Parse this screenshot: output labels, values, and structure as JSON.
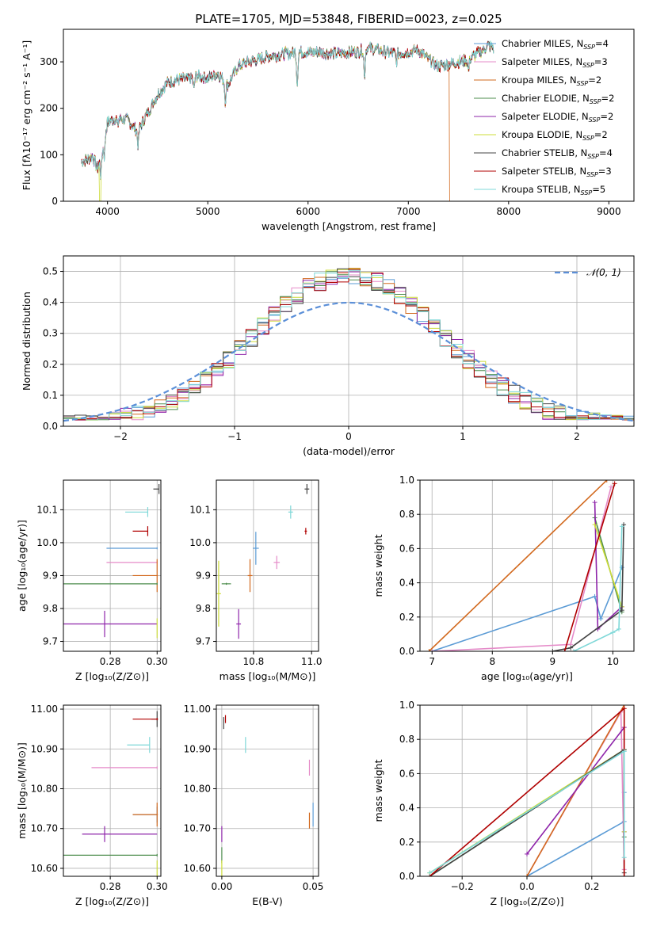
{
  "figure": {
    "title": "PLATE=1705, MJD=53848, FIBERID=0023, z=0.025"
  },
  "colors": {
    "Chabrier MILES": "#5B9BD5",
    "Salpeter MILES": "#E58BC9",
    "Kroupa MILES": "#D2691E",
    "Chabrier ELODIE": "#4C8C4C",
    "Salpeter ELODIE": "#8E24AA",
    "Kroupa ELODIE": "#CDDC39",
    "Chabrier STELIB": "#444444",
    "Salpeter STELIB": "#B00000",
    "Kroupa STELIB": "#7FD8D8",
    "normal": "#5B8FD8"
  },
  "chart_data": [
    {
      "id": "spectrum",
      "type": "line",
      "title": "PLATE=1705, MJD=53848, FIBERID=0023, z=0.025",
      "xlabel": "wavelength [Angstrom, rest frame]",
      "ylabel": "Flux [fλ10⁻¹⁷ erg cm⁻² s⁻¹ A⁻¹]",
      "xlim": [
        3560,
        9250
      ],
      "ylim": [
        0,
        370
      ],
      "xticks": [
        4000,
        5000,
        6000,
        7000,
        8000,
        9000
      ],
      "yticks": [
        0,
        100,
        200,
        300
      ],
      "grid": false,
      "legend_position": "top-right",
      "legend": [
        "Chabrier MILES, N_SSP=4",
        "Salpeter MILES, N_SSP=3",
        "Kroupa MILES, N_SSP=2",
        "Chabrier ELODIE, N_SSP=2",
        "Salpeter ELODIE, N_SSP=2",
        "Kroupa ELODIE, N_SSP=2",
        "Chabrier STELIB, N_SSP=4",
        "Salpeter STELIB, N_SSP=3",
        "Kroupa STELIB, N_SSP=5"
      ],
      "continuum": {
        "wavelength": [
          3740,
          3800,
          3850,
          3900,
          3950,
          4000,
          4100,
          4200,
          4300,
          4400,
          4500,
          4600,
          4700,
          4800,
          4900,
          5000,
          5100,
          5200,
          5300,
          5400,
          5500,
          5600,
          5700,
          5800,
          5900,
          6000,
          6100,
          6200,
          6300,
          6400,
          6500,
          6600,
          6700,
          6800,
          6900,
          7000,
          7100,
          7200,
          7300,
          7400,
          7500,
          7600,
          7700,
          7800,
          7850
        ],
        "flux": [
          85,
          90,
          98,
          70,
          110,
          170,
          180,
          175,
          150,
          190,
          230,
          255,
          262,
          262,
          270,
          265,
          275,
          250,
          290,
          300,
          305,
          312,
          315,
          318,
          322,
          320,
          322,
          318,
          318,
          320,
          322,
          330,
          325,
          320,
          318,
          322,
          325,
          305,
          290,
          295,
          300,
          305,
          320,
          335,
          330
        ]
      },
      "dropouts": [
        {
          "model": "Kroupa ELODIE",
          "start": 3920,
          "end": 9250
        },
        {
          "model": "Kroupa ELODIE",
          "start": 6780,
          "end": 9250
        },
        {
          "model": "Kroupa MILES",
          "start": 7410,
          "end": 9250
        }
      ]
    },
    {
      "id": "residuals",
      "type": "histogram",
      "xlabel": "(data-model)/error",
      "ylabel": "Normed distribution",
      "xlim": [
        -2.5,
        2.5
      ],
      "ylim": [
        0,
        0.55
      ],
      "xticks": [
        -2,
        -1,
        0,
        1,
        2
      ],
      "yticks": [
        0.0,
        0.1,
        0.2,
        0.3,
        0.4,
        0.5
      ],
      "grid": true,
      "bin_width": 0.1,
      "legend": "𝒩(0, 1)",
      "legend_position": "top-right"
    },
    {
      "id": "z-age",
      "type": "errorbar",
      "xlabel": "Z [log₁₀(Z/Z⊙)]",
      "ylabel": "age  [log₁₀(age/yr)]",
      "xlim": [
        0.25,
        0.302
      ],
      "ylim": [
        9.67,
        10.19
      ],
      "xticks": [
        0.275,
        0.3
      ],
      "yticks": [
        9.7,
        9.8,
        9.9,
        10.0,
        10.1
      ],
      "grid": true,
      "points": [
        {
          "model": "Chabrier MILES",
          "x": 0.3,
          "y": 9.983,
          "xerr": [
            0.027,
            0
          ],
          "yerr": 0.003
        },
        {
          "model": "Salpeter MILES",
          "x": 0.3,
          "y": 9.94,
          "xerr": [
            0.027,
            0
          ],
          "yerr": 0.003
        },
        {
          "model": "Kroupa MILES",
          "x": 0.3,
          "y": 9.9,
          "xerr": [
            0.013,
            0.0004
          ],
          "yerr": 0.05
        },
        {
          "model": "Chabrier ELODIE",
          "x": 0.3,
          "y": 9.875,
          "xerr": [
            0.05,
            0
          ],
          "yerr": 0.003
        },
        {
          "model": "Salpeter ELODIE",
          "x": 0.272,
          "y": 9.753,
          "xerr": [
            0.025,
            0.028
          ],
          "yerr": 0.04
        },
        {
          "model": "Kroupa ELODIE",
          "x": 0.3,
          "y": 9.74,
          "xerr": [
            0,
            0
          ],
          "yerr": 0.03
        },
        {
          "model": "Chabrier STELIB",
          "x": 0.301,
          "y": 10.163,
          "xerr": [
            0.003,
            0
          ],
          "yerr": 0.015
        },
        {
          "model": "Salpeter STELIB",
          "x": 0.295,
          "y": 10.035,
          "xerr": [
            0.008,
            0
          ],
          "yerr": 0.015
        },
        {
          "model": "Kroupa STELIB",
          "x": 0.295,
          "y": 10.093,
          "xerr": [
            0.012,
            0
          ],
          "yerr": 0.015
        }
      ]
    },
    {
      "id": "mass-age",
      "type": "errorbar",
      "xlabel": "mass [log₁₀(M/M⊙)]",
      "ylabel": "",
      "xlim": [
        10.59,
        11.03
      ],
      "ylim": [
        9.67,
        10.19
      ],
      "xticks": [
        10.75,
        11.0
      ],
      "yticks": [
        9.7,
        9.8,
        9.9,
        10.0,
        10.1
      ],
      "grid": true,
      "points": [
        {
          "model": "Chabrier MILES",
          "x": 10.76,
          "y": 9.983,
          "xerr": 0.013,
          "yerr": 0.05
        },
        {
          "model": "Salpeter MILES",
          "x": 10.85,
          "y": 9.94,
          "xerr": 0.013,
          "yerr": 0.02
        },
        {
          "model": "Kroupa MILES",
          "x": 10.735,
          "y": 9.9,
          "xerr": 0.01,
          "yerr": 0.05
        },
        {
          "model": "Chabrier ELODIE",
          "x": 10.633,
          "y": 9.875,
          "xerr": 0.02,
          "yerr": 0.003
        },
        {
          "model": "Salpeter ELODIE",
          "x": 10.686,
          "y": 9.753,
          "xerr": 0.01,
          "yerr": 0.045
        },
        {
          "model": "Kroupa ELODIE",
          "x": 10.6,
          "y": 9.845,
          "xerr": 0.01,
          "yerr": 0.1
        },
        {
          "model": "Chabrier STELIB",
          "x": 10.98,
          "y": 10.163,
          "xerr": 0.01,
          "yerr": 0.015
        },
        {
          "model": "Salpeter STELIB",
          "x": 10.975,
          "y": 10.035,
          "xerr": 0.005,
          "yerr": 0.01
        },
        {
          "model": "Kroupa STELIB",
          "x": 10.91,
          "y": 10.093,
          "xerr": 0.01,
          "yerr": 0.02
        }
      ]
    },
    {
      "id": "age-weight",
      "type": "line",
      "xlabel": "age  [log₁₀(age/yr)]",
      "ylabel": "mass weight",
      "xlim": [
        6.8,
        10.35
      ],
      "ylim": [
        0,
        1.0
      ],
      "xticks": [
        7,
        8,
        9,
        10
      ],
      "yticks": [
        0.0,
        0.2,
        0.4,
        0.6,
        0.8,
        1.0
      ],
      "grid": true,
      "series": [
        {
          "model": "Chabrier MILES",
          "x": [
            7.0,
            9.7,
            9.8,
            10.15
          ],
          "y": [
            0.0,
            0.32,
            0.19,
            0.49
          ]
        },
        {
          "model": "Salpeter MILES",
          "x": [
            7.0,
            9.3,
            9.97
          ],
          "y": [
            0.0,
            0.04,
            0.96
          ]
        },
        {
          "model": "Kroupa MILES",
          "x": [
            6.95,
            9.9
          ],
          "y": [
            0.0,
            1.0
          ]
        },
        {
          "model": "Chabrier ELODIE",
          "x": [
            9.7,
            10.15
          ],
          "y": [
            0.78,
            0.23
          ]
        },
        {
          "model": "Salpeter ELODIE",
          "x": [
            9.7,
            9.75,
            10.15
          ],
          "y": [
            0.87,
            0.13,
            0.26
          ]
        },
        {
          "model": "Kroupa ELODIE",
          "x": [
            9.7,
            10.15
          ],
          "y": [
            0.74,
            0.26
          ]
        },
        {
          "model": "Chabrier STELIB",
          "x": [
            9.0,
            9.3,
            10.15,
            10.18
          ],
          "y": [
            0.0,
            0.02,
            0.24,
            0.74
          ]
        },
        {
          "model": "Salpeter STELIB",
          "x": [
            9.2,
            10.03
          ],
          "y": [
            0.0,
            0.98
          ]
        },
        {
          "model": "Kroupa STELIB",
          "x": [
            9.35,
            10.0,
            10.1,
            10.15
          ],
          "y": [
            0.0,
            0.11,
            0.13,
            0.73
          ]
        }
      ]
    },
    {
      "id": "z-mass",
      "type": "errorbar",
      "xlabel": "Z [log₁₀(Z/Z⊙)]",
      "ylabel": "mass [log₁₀(M/M⊙)]",
      "xlim": [
        0.25,
        0.302
      ],
      "ylim": [
        10.58,
        11.01
      ],
      "xticks": [
        0.275,
        0.3
      ],
      "yticks": [
        10.6,
        10.7,
        10.8,
        10.9,
        11.0
      ],
      "grid": true,
      "points": [
        {
          "model": "Chabrier MILES",
          "x": 0.3,
          "y": 10.735,
          "xerr": [
            0.013,
            0
          ],
          "yerr": 0.02
        },
        {
          "model": "Salpeter MILES",
          "x": 0.3,
          "y": 10.853,
          "xerr": [
            0.035,
            0
          ],
          "yerr": 0.003
        },
        {
          "model": "Kroupa MILES",
          "x": 0.3,
          "y": 10.735,
          "xerr": [
            0.013,
            0.0004
          ],
          "yerr": 0.03
        },
        {
          "model": "Chabrier ELODIE",
          "x": 0.3,
          "y": 10.633,
          "xerr": [
            0.05,
            0
          ],
          "yerr": 0.003
        },
        {
          "model": "Salpeter ELODIE",
          "x": 0.272,
          "y": 10.686,
          "xerr": [
            0.012,
            0.028
          ],
          "yerr": 0.02
        },
        {
          "model": "Kroupa ELODIE",
          "x": 0.3,
          "y": 10.6,
          "xerr": [
            0,
            0
          ],
          "yerr": 0.02
        },
        {
          "model": "Chabrier STELIB",
          "x": 0.3,
          "y": 10.975,
          "xerr": [
            0.003,
            0.0005
          ],
          "yerr": 0.02
        },
        {
          "model": "Salpeter STELIB",
          "x": 0.3,
          "y": 10.975,
          "xerr": [
            0.013,
            0
          ],
          "yerr": 0.003
        },
        {
          "model": "Kroupa STELIB",
          "x": 0.296,
          "y": 10.91,
          "xerr": [
            0.012,
            0
          ],
          "yerr": 0.02
        }
      ]
    },
    {
      "id": "ebv-mass",
      "type": "errorbar",
      "xlabel": "E(B-V)",
      "ylabel": "",
      "xlim": [
        -0.003,
        0.053
      ],
      "ylim": [
        10.58,
        11.01
      ],
      "xticks": [
        0.0,
        0.05
      ],
      "yticks": [
        10.6,
        10.7,
        10.8,
        10.9,
        11.0
      ],
      "grid": true,
      "points": [
        {
          "model": "Chabrier MILES",
          "x": 0.05,
          "y": 10.735,
          "yerr": 0.03
        },
        {
          "model": "Salpeter MILES",
          "x": 0.048,
          "y": 10.853,
          "yerr": 0.02
        },
        {
          "model": "Kroupa MILES",
          "x": 0.048,
          "y": 10.72,
          "yerr": 0.02
        },
        {
          "model": "Chabrier ELODIE",
          "x": 0.0,
          "y": 10.633,
          "yerr": 0.02
        },
        {
          "model": "Salpeter ELODIE",
          "x": 0.0,
          "y": 10.686,
          "yerr": 0.02
        },
        {
          "model": "Kroupa ELODIE",
          "x": 0.0,
          "y": 10.6,
          "yerr": 0.02
        },
        {
          "model": "Chabrier STELIB",
          "x": 0.001,
          "y": 10.965,
          "yerr": 0.015
        },
        {
          "model": "Salpeter STELIB",
          "x": 0.002,
          "y": 10.975,
          "yerr": 0.01
        },
        {
          "model": "Kroupa STELIB",
          "x": 0.013,
          "y": 10.91,
          "yerr": 0.02
        }
      ]
    },
    {
      "id": "z-weight",
      "type": "line",
      "xlabel": "Z [log₁₀(Z/Z⊙)]",
      "ylabel": "mass weight",
      "xlim": [
        -0.33,
        0.33
      ],
      "ylim": [
        0,
        1.0
      ],
      "xticks": [
        -0.2,
        0.0,
        0.2
      ],
      "yticks": [
        0.0,
        0.2,
        0.4,
        0.6,
        0.8,
        1.0
      ],
      "grid": true,
      "series": [
        {
          "model": "Chabrier MILES",
          "x": [
            0.0,
            0.3,
            0.3
          ],
          "y": [
            0.0,
            0.32,
            0.49
          ]
        },
        {
          "model": "Salpeter MILES",
          "x": [
            0.0,
            0.29,
            0.3
          ],
          "y": [
            0.0,
            0.96,
            0.04
          ]
        },
        {
          "model": "Kroupa MILES",
          "x": [
            0.0,
            0.3
          ],
          "y": [
            0.0,
            1.0
          ]
        },
        {
          "model": "Chabrier ELODIE",
          "x": [
            -0.3,
            0.3,
            0.3
          ],
          "y": [
            0.0,
            0.74,
            0.23
          ]
        },
        {
          "model": "Salpeter ELODIE",
          "x": [
            0.0,
            0.3,
            0.3
          ],
          "y": [
            0.13,
            0.87,
            0.26
          ]
        },
        {
          "model": "Kroupa ELODIE",
          "x": [
            -0.3,
            0.3,
            0.3
          ],
          "y": [
            0.02,
            0.74,
            0.26
          ]
        },
        {
          "model": "Chabrier STELIB",
          "x": [
            -0.3,
            0.3,
            0.3
          ],
          "y": [
            0.0,
            0.74,
            0.02
          ]
        },
        {
          "model": "Salpeter STELIB",
          "x": [
            -0.3,
            0.3,
            0.3
          ],
          "y": [
            0.0,
            0.98,
            0.0
          ]
        },
        {
          "model": "Kroupa STELIB",
          "x": [
            -0.3,
            0.3,
            0.3
          ],
          "y": [
            0.02,
            0.73,
            0.11
          ]
        }
      ]
    }
  ]
}
